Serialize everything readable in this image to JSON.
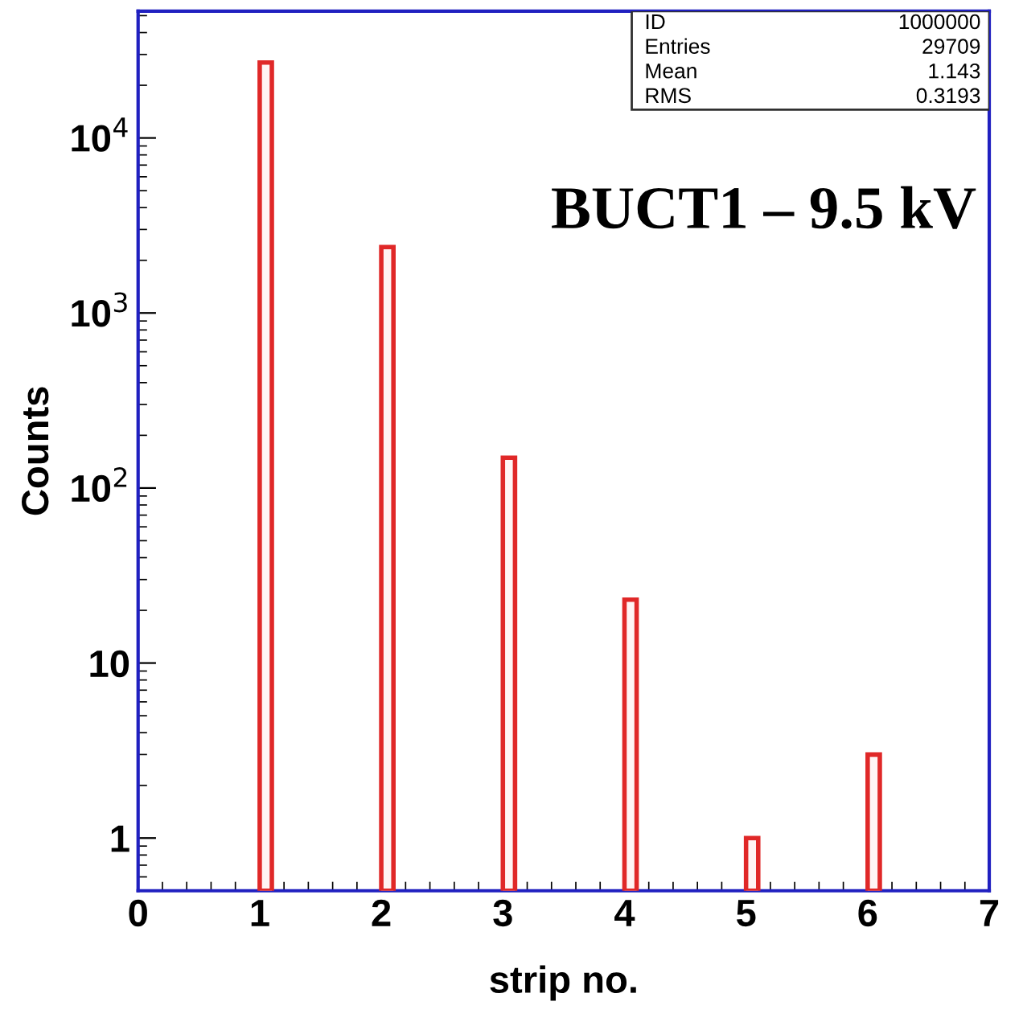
{
  "chart_data": {
    "type": "bar",
    "title": "BUCT1 – 9.5 kV",
    "xlabel": "strip no.",
    "ylabel": "Counts",
    "x": [
      1,
      2,
      3,
      4,
      5,
      6
    ],
    "values": [
      27000,
      2380,
      149,
      23,
      1,
      3
    ],
    "color": "#e02828",
    "log": "y",
    "xlim": [
      0,
      7
    ],
    "xticks": [
      0,
      1,
      2,
      3,
      4,
      5,
      6,
      7
    ],
    "ylim": [
      0.5,
      53000
    ],
    "yticks": [
      1,
      10,
      {
        "value": 100,
        "label": "10$^{2}$"
      },
      {
        "value": 1000,
        "label": "10$^{3}$"
      },
      {
        "value": 10000,
        "label": "10$^{4}$"
      }
    ],
    "grid": false,
    "legend": false,
    "annotations": [
      "ID",
      "1000000",
      "Entries",
      "29709",
      "Mean",
      "1.143",
      "RMS",
      "0.3193"
    ]
  }
}
